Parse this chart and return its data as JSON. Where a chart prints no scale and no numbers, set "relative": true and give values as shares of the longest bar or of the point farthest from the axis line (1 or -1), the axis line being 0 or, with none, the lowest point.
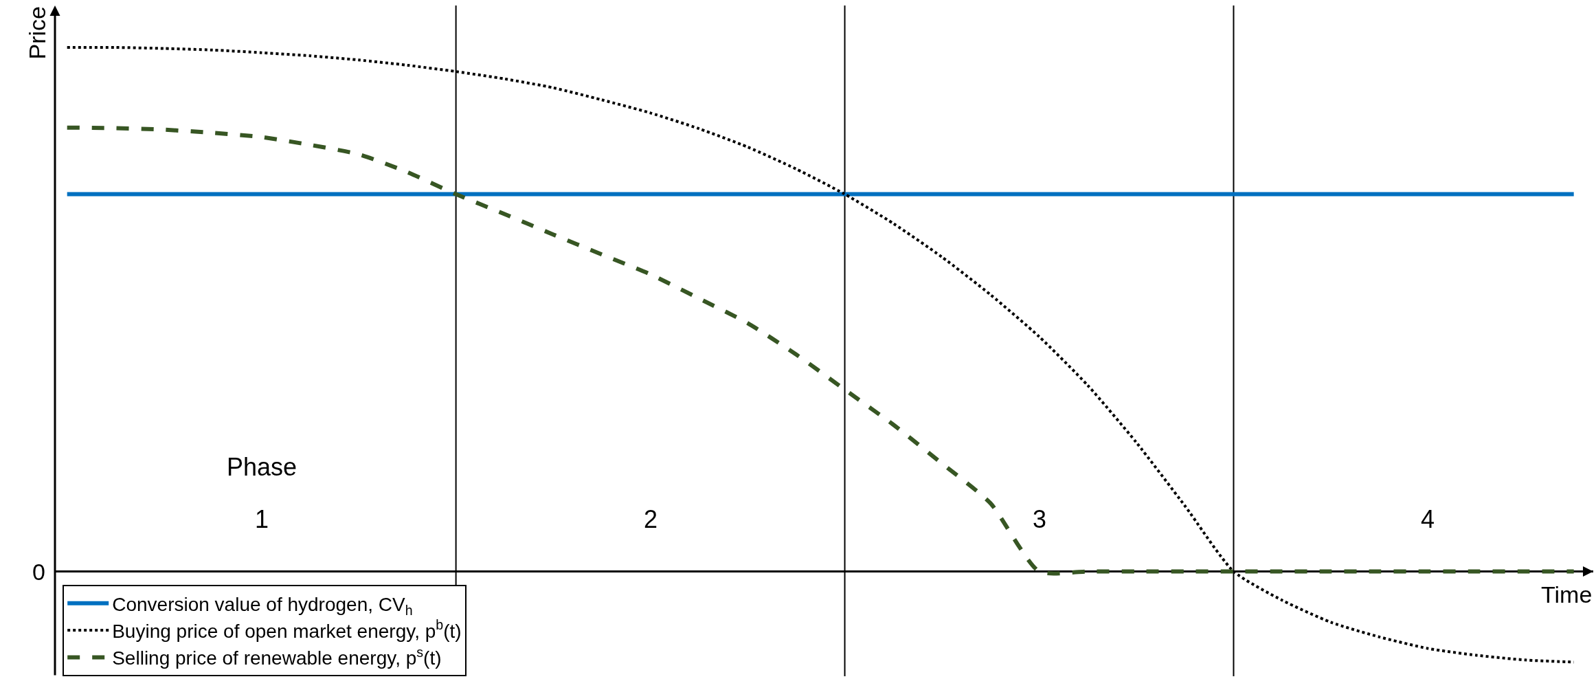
{
  "chart_data": {
    "type": "line",
    "relative": true,
    "xlabel": "Time",
    "ylabel": "Price",
    "categories": [
      null,
      null,
      null,
      null,
      null,
      null,
      null,
      null,
      null,
      null,
      null,
      null,
      null,
      null,
      null,
      null,
      null,
      null,
      null,
      null,
      null,
      null,
      null,
      null,
      null,
      null,
      null,
      null,
      null,
      null,
      null,
      null
    ],
    "series": [
      {
        "name": "Conversion value of hydrogen, CV$_{h}$",
        "color": "#0070c0",
        "line_style": "solid",
        "values": [
          0.72,
          0.72,
          0.72,
          0.72,
          0.72,
          0.72,
          0.72,
          0.72,
          0.72,
          0.72,
          0.72,
          0.72,
          0.72,
          0.72,
          0.72,
          0.72,
          0.72,
          0.72,
          0.72,
          0.72,
          0.72,
          0.72,
          0.72,
          0.72,
          0.72,
          0.72,
          0.72,
          0.72,
          0.72,
          0.72,
          0.72,
          0.72
        ]
      },
      {
        "name": "Buying price of open market energy, p$^{b}$(t)",
        "color": "#000000",
        "line_style": "dotted",
        "values": [
          1.0,
          1.0,
          0.998,
          0.995,
          0.99,
          0.984,
          0.976,
          0.966,
          0.954,
          0.94,
          0.923,
          0.9,
          0.875,
          0.845,
          0.81,
          0.768,
          0.72,
          0.664,
          0.6,
          0.528,
          0.448,
          0.355,
          0.246,
          0.125,
          0,
          -0.055,
          -0.097,
          -0.125,
          -0.147,
          -0.16,
          -0.169,
          -0.173
        ]
      },
      {
        "name": "Selling price of renewable energy, p$^{s}$(t)",
        "color": "#375623",
        "line_style": "dashed",
        "values": [
          0.847,
          0.846,
          0.843,
          0.837,
          0.829,
          0.814,
          0.796,
          0.762,
          0.72,
          0.682,
          0.643,
          0.605,
          0.567,
          0.521,
          0.474,
          0.414,
          0.347,
          0.28,
          0.206,
          0.13,
          0,
          0,
          0,
          0,
          0,
          0,
          0,
          0,
          0,
          0,
          0,
          0
        ]
      }
    ],
    "annotations": [
      "Phase",
      "1",
      "2",
      "3",
      "4",
      "0"
    ],
    "legend": "bottom left",
    "grid": false,
    "marker": "none"
  }
}
